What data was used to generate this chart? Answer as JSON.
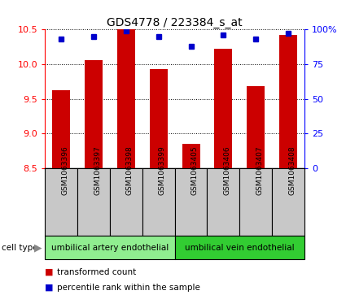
{
  "title": "GDS4778 / 223384_s_at",
  "samples": [
    "GSM1063396",
    "GSM1063397",
    "GSM1063398",
    "GSM1063399",
    "GSM1063405",
    "GSM1063406",
    "GSM1063407",
    "GSM1063408"
  ],
  "bar_values": [
    9.62,
    10.06,
    10.5,
    9.93,
    8.85,
    10.22,
    9.68,
    10.42
  ],
  "percentile_values": [
    93,
    95,
    99,
    95,
    88,
    96,
    93,
    97
  ],
  "bar_color": "#cc0000",
  "dot_color": "#0000cc",
  "ylim_left": [
    8.5,
    10.5
  ],
  "ylim_right": [
    0,
    100
  ],
  "yticks_left": [
    8.5,
    9.0,
    9.5,
    10.0,
    10.5
  ],
  "yticks_right": [
    0,
    25,
    50,
    75,
    100
  ],
  "ytick_labels_right": [
    "0",
    "25",
    "50",
    "75",
    "100%"
  ],
  "groups": [
    {
      "label": "umbilical artery endothelial",
      "indices": [
        0,
        1,
        2,
        3
      ],
      "color": "#90ee90"
    },
    {
      "label": "umbilical vein endothelial",
      "indices": [
        4,
        5,
        6,
        7
      ],
      "color": "#32cd32"
    }
  ],
  "legend_items": [
    {
      "label": "transformed count",
      "color": "#cc0000"
    },
    {
      "label": "percentile rank within the sample",
      "color": "#0000cc"
    }
  ],
  "cell_type_label": "cell type",
  "tick_area_bg": "#c8c8c8",
  "bar_width": 0.55
}
